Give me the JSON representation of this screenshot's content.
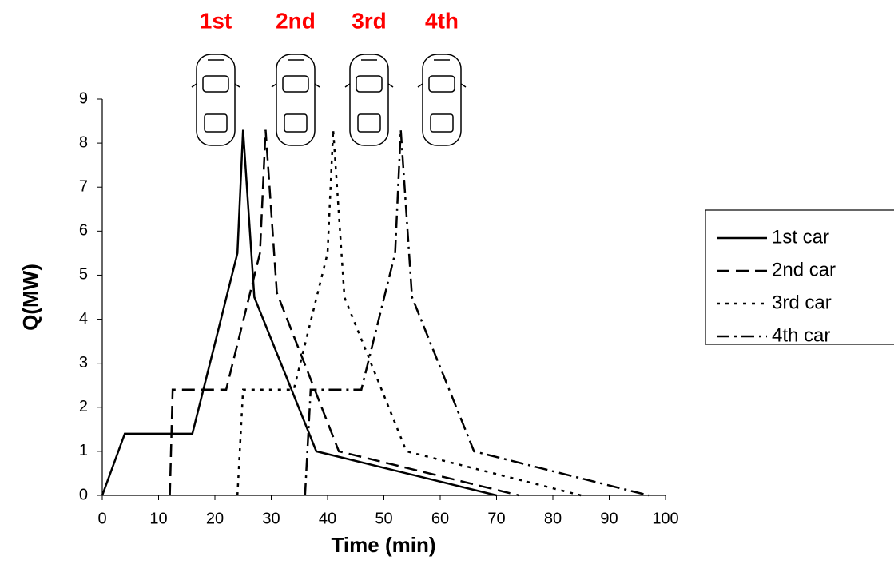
{
  "chart_data": {
    "type": "line",
    "xlabel": "Time (min)",
    "ylabel": "Q(MW)",
    "annotations": [
      "1st",
      "2nd",
      "3rd",
      "4th"
    ],
    "annotation_color": "#ff0000",
    "xlim": [
      0,
      100
    ],
    "xticks": [
      0,
      10,
      20,
      30,
      40,
      50,
      60,
      70,
      80,
      90,
      100
    ],
    "ylim": [
      0,
      9
    ],
    "yticks": [
      0,
      1,
      2,
      3,
      4,
      5,
      6,
      7,
      8,
      9
    ],
    "grid": false,
    "legend": "right",
    "series": [
      {
        "name": "1st car",
        "color": "#000000",
        "line_style": "solid",
        "x": [
          0,
          4,
          16,
          24,
          25,
          27,
          38,
          70
        ],
        "values": [
          0,
          1.4,
          1.4,
          5.5,
          8.3,
          4.5,
          1,
          0
        ]
      },
      {
        "name": "2nd car",
        "color": "#000000",
        "line_style": "dashed",
        "x": [
          12,
          12.5,
          22,
          28,
          29,
          31,
          42,
          74
        ],
        "values": [
          0,
          2.4,
          2.4,
          5.5,
          8.3,
          4.6,
          1,
          0
        ]
      },
      {
        "name": "3rd car",
        "color": "#000000",
        "line_style": "dotted",
        "x": [
          24,
          25,
          34,
          40,
          41,
          43,
          54,
          85
        ],
        "values": [
          0,
          2.4,
          2.4,
          5.5,
          8.3,
          4.5,
          1,
          0
        ]
      },
      {
        "name": "4th car",
        "color": "#000000",
        "line_style": "dashdot",
        "x": [
          36,
          37,
          46,
          52,
          53,
          55,
          66,
          97
        ],
        "values": [
          0,
          2.4,
          2.4,
          5.5,
          8.3,
          4.5,
          1,
          0
        ]
      }
    ]
  }
}
